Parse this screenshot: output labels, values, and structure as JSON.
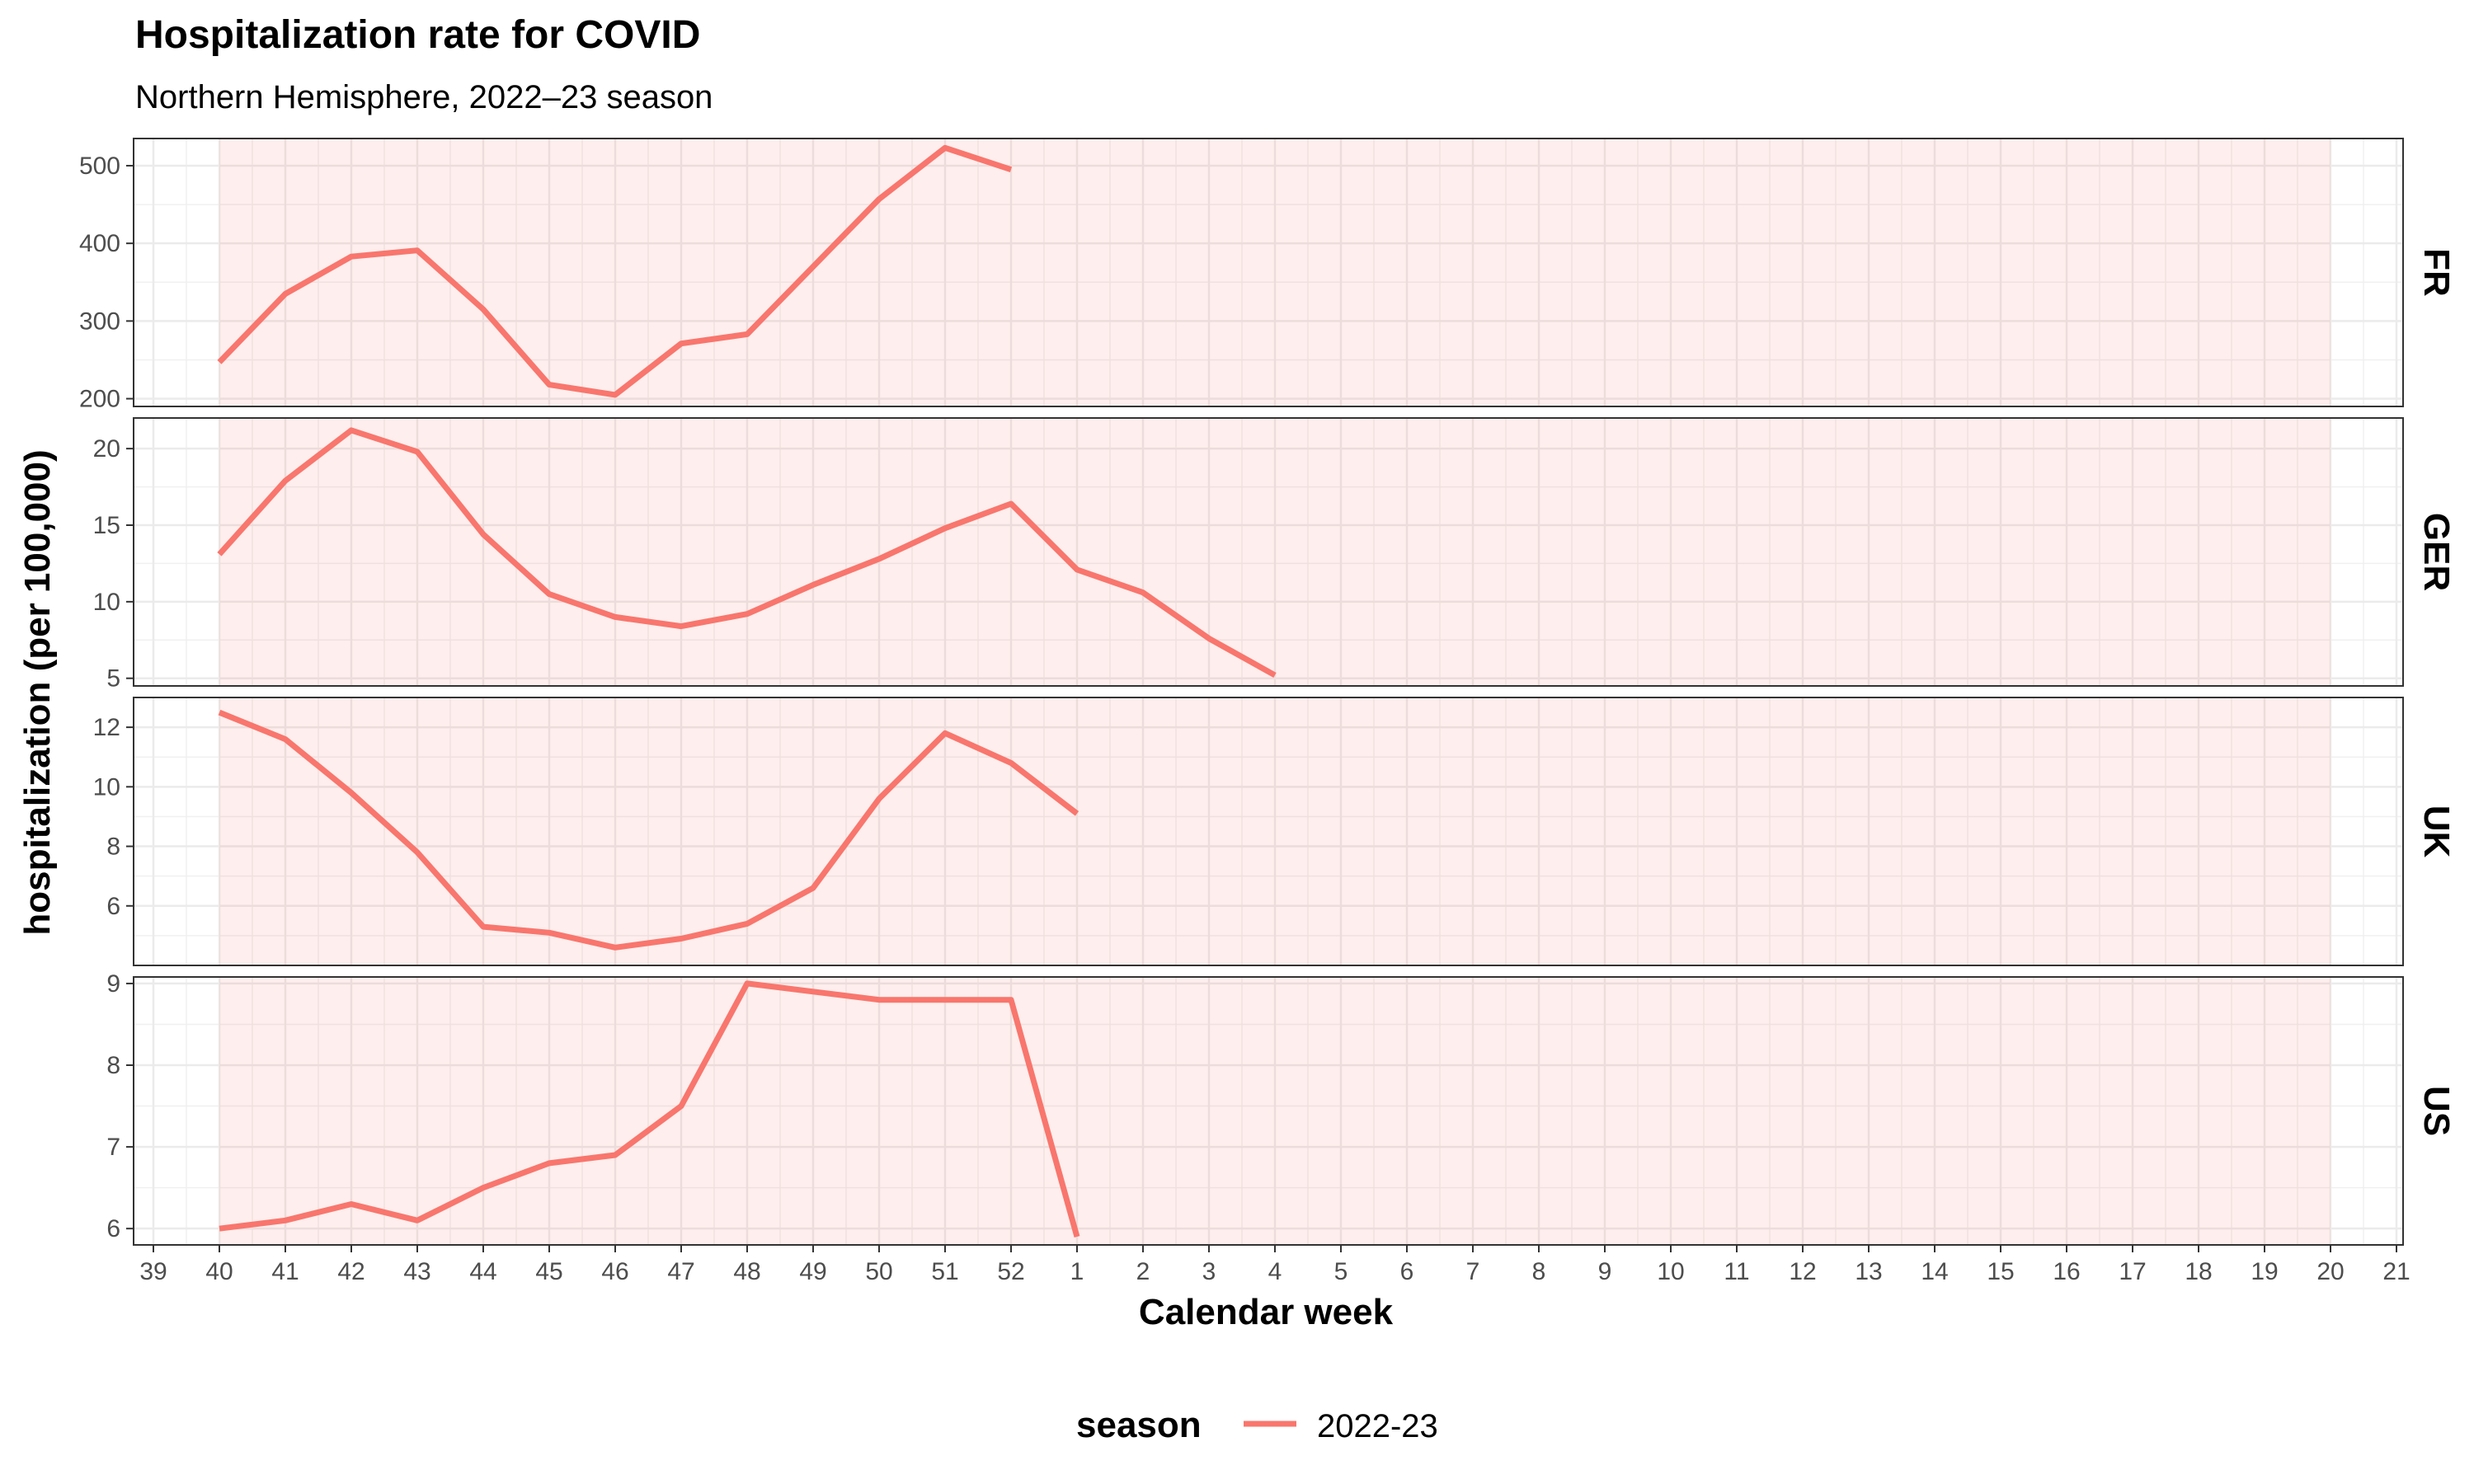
{
  "chart_data": {
    "type": "line",
    "title": "Hospitalization rate for COVID",
    "subtitle": "Northern Hemisphere, 2022–23 season",
    "xlabel": "Calendar week",
    "ylabel": "hospitalization (per 100,000)",
    "x_ticks": [
      "39",
      "40",
      "41",
      "42",
      "43",
      "44",
      "45",
      "46",
      "47",
      "48",
      "49",
      "50",
      "51",
      "52",
      "1",
      "2",
      "3",
      "4",
      "5",
      "6",
      "7",
      "8",
      "9",
      "10",
      "11",
      "12",
      "13",
      "14",
      "15",
      "16",
      "17",
      "18",
      "19",
      "20",
      "21"
    ],
    "shaded_range": [
      "40",
      "20"
    ],
    "grid": true,
    "legend": {
      "title": "season",
      "position": "bottom",
      "entries": [
        {
          "label": "2022-23",
          "color": "#F8766D"
        }
      ]
    },
    "colors": {
      "line": "#F8766D",
      "shade": "#F8766D"
    },
    "panels": [
      {
        "name": "FR",
        "y_ticks": [
          200,
          300,
          400,
          500
        ],
        "ylim": [
          190,
          535
        ],
        "series": [
          {
            "name": "2022-23",
            "x": [
              "40",
              "41",
              "42",
              "43",
              "44",
              "45",
              "46",
              "47",
              "48",
              "49",
              "50",
              "51",
              "52"
            ],
            "y": [
              247,
              335,
              383,
              391,
              315,
              218,
              205,
              271,
              283,
              370,
              457,
              523,
              495
            ]
          }
        ]
      },
      {
        "name": "GER",
        "y_ticks": [
          5,
          10,
          15,
          20
        ],
        "ylim": [
          4.5,
          22
        ],
        "series": [
          {
            "name": "2022-23",
            "x": [
              "40",
              "41",
              "42",
              "43",
              "44",
              "45",
              "46",
              "47",
              "48",
              "49",
              "50",
              "51",
              "52",
              "1",
              "2",
              "3",
              "4"
            ],
            "y": [
              13.1,
              17.9,
              21.2,
              19.8,
              14.4,
              10.5,
              9.0,
              8.4,
              9.2,
              11.1,
              12.8,
              14.8,
              16.4,
              12.1,
              10.6,
              7.6,
              5.2
            ]
          }
        ]
      },
      {
        "name": "UK",
        "y_ticks": [
          6,
          8,
          10,
          12
        ],
        "ylim": [
          4.0,
          13.0
        ],
        "series": [
          {
            "name": "2022-23",
            "x": [
              "40",
              "41",
              "42",
              "43",
              "44",
              "45",
              "46",
              "47",
              "48",
              "49",
              "50",
              "51",
              "52",
              "1"
            ],
            "y": [
              12.5,
              11.6,
              9.8,
              7.8,
              5.3,
              5.1,
              4.6,
              4.9,
              5.4,
              6.6,
              9.6,
              11.8,
              10.8,
              9.1
            ]
          }
        ]
      },
      {
        "name": "US",
        "y_ticks": [
          6,
          7,
          8,
          9
        ],
        "ylim": [
          5.8,
          9.08
        ],
        "series": [
          {
            "name": "2022-23",
            "x": [
              "40",
              "41",
              "42",
              "43",
              "44",
              "45",
              "46",
              "47",
              "48",
              "49",
              "50",
              "51",
              "52",
              "1"
            ],
            "y": [
              6.0,
              6.1,
              6.3,
              6.1,
              6.5,
              6.8,
              6.9,
              7.5,
              9.0,
              8.9,
              8.8,
              8.8,
              8.8,
              5.9
            ]
          }
        ]
      }
    ]
  }
}
